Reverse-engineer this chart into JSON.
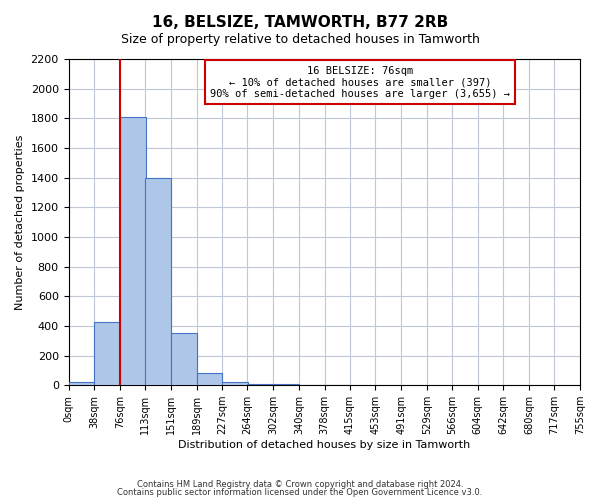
{
  "title": "16, BELSIZE, TAMWORTH, B77 2RB",
  "subtitle": "Size of property relative to detached houses in Tamworth",
  "xlabel": "Distribution of detached houses by size in Tamworth",
  "ylabel": "Number of detached properties",
  "bar_left_edges": [
    0,
    38,
    76,
    113,
    151,
    189,
    227,
    264,
    302,
    340,
    378,
    415,
    453,
    491,
    529,
    566,
    604,
    642,
    680,
    717
  ],
  "bar_heights": [
    20,
    425,
    1810,
    1400,
    350,
    80,
    25,
    10,
    5,
    2,
    1,
    0,
    0,
    0,
    0,
    0,
    0,
    0,
    0,
    0
  ],
  "bin_width": 38,
  "bar_color": "#aec6e8",
  "bar_edge_color": "#4472c4",
  "vline_x": 76,
  "vline_color": "#cc0000",
  "ylim": [
    0,
    2200
  ],
  "yticks": [
    0,
    200,
    400,
    600,
    800,
    1000,
    1200,
    1400,
    1600,
    1800,
    2000,
    2200
  ],
  "xtick_positions": [
    0,
    38,
    76,
    113,
    151,
    189,
    227,
    264,
    302,
    340,
    378,
    415,
    453,
    491,
    529,
    566,
    604,
    642,
    680,
    717,
    755
  ],
  "xtick_labels": [
    "0sqm",
    "38sqm",
    "76sqm",
    "113sqm",
    "151sqm",
    "189sqm",
    "227sqm",
    "264sqm",
    "302sqm",
    "340sqm",
    "378sqm",
    "415sqm",
    "453sqm",
    "491sqm",
    "529sqm",
    "566sqm",
    "604sqm",
    "642sqm",
    "680sqm",
    "717sqm",
    "755sqm"
  ],
  "annotation_text": "16 BELSIZE: 76sqm\n← 10% of detached houses are smaller (397)\n90% of semi-detached houses are larger (3,655) →",
  "annotation_box_color": "#ffffff",
  "annotation_box_edge_color": "#cc0000",
  "footer_line1": "Contains HM Land Registry data © Crown copyright and database right 2024.",
  "footer_line2": "Contains public sector information licensed under the Open Government Licence v3.0.",
  "background_color": "#ffffff",
  "grid_color": "#c0c8d8"
}
